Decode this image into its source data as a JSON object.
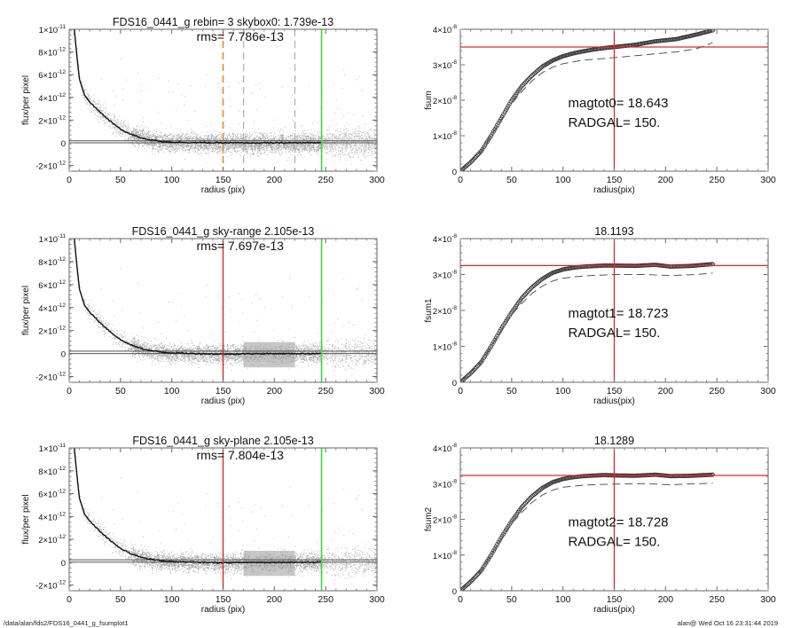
{
  "footer": {
    "path": "/data/alan/fds2/FDS16_0441_g_fsumplot1",
    "stamp": "alan@  Wed Oct 16 23:31:44 2019"
  },
  "colors": {
    "scatter_light": "#b8b8b8",
    "scatter_dark": "#9a9a9a",
    "profile": "#111111",
    "red": "#e0262a",
    "green": "#33dd33",
    "orange": "#f08a24",
    "gray_dash": "#b0b0b0",
    "dashed_curve": "#555555"
  },
  "chart_data": [
    {
      "id": "profile-0",
      "type": "scatter",
      "title": "FDS16_0441_g rebin= 3    skybox0:  1.739e-13",
      "annotation": "rms= 7.786e-13",
      "xlabel": "radius (pix)",
      "ylabel": "flux/per pixel",
      "xlim": [
        0,
        300
      ],
      "ylim": [
        -2.5e-12,
        1e-11
      ],
      "xticks": [
        0,
        50,
        100,
        150,
        200,
        250,
        300
      ],
      "xtick_labels": [
        "0",
        "50",
        "100",
        "150",
        "200",
        "250",
        "300"
      ],
      "yticks": [
        -2e-12,
        0,
        2e-12,
        4e-12,
        6e-12,
        8e-12,
        1e-11
      ],
      "ytick_labels": [
        [
          "-2×10",
          "-12"
        ],
        [
          "0",
          ""
        ],
        [
          "2×10",
          "-12"
        ],
        [
          "4×10",
          "-12"
        ],
        [
          "6×10",
          "-12"
        ],
        [
          "8×10",
          "-12"
        ],
        [
          "1×10",
          "-11"
        ]
      ],
      "hlines": [
        0,
        1.739e-13
      ],
      "vlines": [
        {
          "x": 150,
          "style": "orange-dashed"
        },
        {
          "x": 170,
          "style": "gray-dashed"
        },
        {
          "x": 220,
          "style": "gray-dashed"
        },
        {
          "x": 246,
          "style": "green"
        }
      ],
      "shaded_bands": [],
      "profile_points": [
        [
          5,
          1e-11
        ],
        [
          8,
          7.2e-12
        ],
        [
          10,
          5.6e-12
        ],
        [
          15,
          4.2e-12
        ],
        [
          20,
          3.6e-12
        ],
        [
          30,
          2.7e-12
        ],
        [
          40,
          1.9e-12
        ],
        [
          50,
          1.2e-12
        ],
        [
          60,
          7.5e-13
        ],
        [
          70,
          4.5e-13
        ],
        [
          80,
          2.5e-13
        ],
        [
          90,
          1.2e-13
        ],
        [
          100,
          6e-14
        ],
        [
          120,
          2e-14
        ],
        [
          150,
          0
        ],
        [
          180,
          -1e-14
        ],
        [
          200,
          -1e-14
        ],
        [
          246,
          1e-14
        ]
      ]
    },
    {
      "id": "growth-0",
      "type": "line",
      "title": "",
      "annotation_lines": [
        "magtot0=  18.643",
        "RADGAL=    150."
      ],
      "xlabel": "radius(pix)",
      "ylabel": "fsum",
      "xlim": [
        0,
        300
      ],
      "ylim": [
        0,
        4e-08
      ],
      "xticks": [
        0,
        50,
        100,
        150,
        200,
        250,
        300
      ],
      "xtick_labels": [
        "0",
        "50",
        "100",
        "150",
        "200",
        "250",
        "300"
      ],
      "yticks": [
        0,
        1e-08,
        2e-08,
        3e-08,
        4e-08
      ],
      "ytick_labels": [
        [
          "0",
          ""
        ],
        [
          "1×10",
          "-8"
        ],
        [
          "2×10",
          "-8"
        ],
        [
          "3×10",
          "-8"
        ],
        [
          "4×10",
          "-8"
        ]
      ],
      "red_vline": 150,
      "red_hline": 3.5e-08,
      "series": [
        {
          "name": "fsum",
          "style": "circles",
          "points": [
            [
              0,
              0
            ],
            [
              10,
              2.5e-09
            ],
            [
              20,
              5.5e-09
            ],
            [
              30,
              1e-08
            ],
            [
              40,
              1.5e-08
            ],
            [
              50,
              2e-08
            ],
            [
              60,
              2.4e-08
            ],
            [
              70,
              2.7e-08
            ],
            [
              80,
              2.95e-08
            ],
            [
              90,
              3.12e-08
            ],
            [
              100,
              3.24e-08
            ],
            [
              110,
              3.32e-08
            ],
            [
              120,
              3.38e-08
            ],
            [
              130,
              3.43e-08
            ],
            [
              140,
              3.47e-08
            ],
            [
              150,
              3.5e-08
            ],
            [
              170,
              3.56e-08
            ],
            [
              190,
              3.66e-08
            ],
            [
              210,
              3.72e-08
            ],
            [
              230,
              3.85e-08
            ],
            [
              246,
              3.97e-08
            ]
          ]
        },
        {
          "name": "dashed",
          "style": "dashed",
          "points": [
            [
              0,
              0
            ],
            [
              20,
              5.5e-09
            ],
            [
              40,
              1.45e-08
            ],
            [
              50,
              1.9e-08
            ],
            [
              60,
              2.25e-08
            ],
            [
              70,
              2.55e-08
            ],
            [
              80,
              2.78e-08
            ],
            [
              90,
              2.93e-08
            ],
            [
              100,
              3.03e-08
            ],
            [
              120,
              3.13e-08
            ],
            [
              150,
              3.2e-08
            ],
            [
              180,
              3.28e-08
            ],
            [
              210,
              3.36e-08
            ],
            [
              230,
              3.45e-08
            ],
            [
              246,
              3.62e-08
            ]
          ]
        }
      ]
    },
    {
      "id": "profile-1",
      "type": "scatter",
      "title": "FDS16_0441_g sky-range  2.105e-13",
      "annotation": "rms= 7.697e-13",
      "xlabel": "radius (pix)",
      "ylabel": "flux/per pixel",
      "xlim": [
        0,
        300
      ],
      "ylim": [
        -2.5e-12,
        1e-11
      ],
      "xticks": [
        0,
        50,
        100,
        150,
        200,
        250,
        300
      ],
      "xtick_labels": [
        "0",
        "50",
        "100",
        "150",
        "200",
        "250",
        "300"
      ],
      "yticks": [
        -2e-12,
        0,
        2e-12,
        4e-12,
        6e-12,
        8e-12,
        1e-11
      ],
      "ytick_labels": [
        [
          "-2×10",
          "-12"
        ],
        [
          "0",
          ""
        ],
        [
          "2×10",
          "-12"
        ],
        [
          "4×10",
          "-12"
        ],
        [
          "6×10",
          "-12"
        ],
        [
          "8×10",
          "-12"
        ],
        [
          "1×10",
          "-11"
        ]
      ],
      "hlines": [
        0,
        2.105e-13
      ],
      "vlines": [
        {
          "x": 150,
          "style": "red"
        },
        {
          "x": 246,
          "style": "green"
        }
      ],
      "shaded_bands": [
        [
          170,
          220
        ]
      ],
      "profile_points": [
        [
          5,
          1e-11
        ],
        [
          8,
          7.2e-12
        ],
        [
          10,
          5.6e-12
        ],
        [
          15,
          4.2e-12
        ],
        [
          20,
          3.6e-12
        ],
        [
          30,
          2.7e-12
        ],
        [
          40,
          1.9e-12
        ],
        [
          50,
          1.2e-12
        ],
        [
          60,
          7.5e-13
        ],
        [
          70,
          4.5e-13
        ],
        [
          80,
          2.5e-13
        ],
        [
          90,
          1.2e-13
        ],
        [
          100,
          6e-14
        ],
        [
          120,
          0
        ],
        [
          150,
          -5e-14
        ],
        [
          180,
          -1e-14
        ],
        [
          200,
          -1e-14
        ],
        [
          246,
          0
        ]
      ]
    },
    {
      "id": "growth-1",
      "type": "line",
      "title": "18.1193",
      "annotation_lines": [
        "magtot1=  18.723",
        "RADGAL=    150."
      ],
      "xlabel": "radius(pix)",
      "ylabel": "fsum1",
      "xlim": [
        0,
        300
      ],
      "ylim": [
        0,
        4e-08
      ],
      "xticks": [
        0,
        50,
        100,
        150,
        200,
        250,
        300
      ],
      "xtick_labels": [
        "0",
        "50",
        "100",
        "150",
        "200",
        "250",
        "300"
      ],
      "yticks": [
        0,
        1e-08,
        2e-08,
        3e-08,
        4e-08
      ],
      "ytick_labels": [
        [
          "0",
          ""
        ],
        [
          "1×10",
          "-8"
        ],
        [
          "2×10",
          "-8"
        ],
        [
          "3×10",
          "-8"
        ],
        [
          "4×10",
          "-8"
        ]
      ],
      "red_vline": 150,
      "red_hline": 3.25e-08,
      "series": [
        {
          "name": "fsum1",
          "style": "circles",
          "points": [
            [
              0,
              0
            ],
            [
              10,
              2.5e-09
            ],
            [
              20,
              5.5e-09
            ],
            [
              30,
              1e-08
            ],
            [
              40,
              1.5e-08
            ],
            [
              50,
              1.95e-08
            ],
            [
              60,
              2.35e-08
            ],
            [
              70,
              2.65e-08
            ],
            [
              80,
              2.88e-08
            ],
            [
              90,
              3.05e-08
            ],
            [
              100,
              3.14e-08
            ],
            [
              110,
              3.19e-08
            ],
            [
              120,
              3.22e-08
            ],
            [
              140,
              3.25e-08
            ],
            [
              150,
              3.25e-08
            ],
            [
              170,
              3.24e-08
            ],
            [
              190,
              3.27e-08
            ],
            [
              205,
              3.22e-08
            ],
            [
              225,
              3.24e-08
            ],
            [
              246,
              3.29e-08
            ]
          ]
        },
        {
          "name": "dashed",
          "style": "dashed",
          "points": [
            [
              0,
              0
            ],
            [
              20,
              5.5e-09
            ],
            [
              40,
              1.45e-08
            ],
            [
              50,
              1.88e-08
            ],
            [
              60,
              2.2e-08
            ],
            [
              70,
              2.48e-08
            ],
            [
              80,
              2.68e-08
            ],
            [
              90,
              2.82e-08
            ],
            [
              100,
              2.9e-08
            ],
            [
              120,
              2.96e-08
            ],
            [
              150,
              3e-08
            ],
            [
              180,
              3e-08
            ],
            [
              205,
              2.97e-08
            ],
            [
              230,
              3e-08
            ],
            [
              246,
              3.04e-08
            ]
          ]
        }
      ]
    },
    {
      "id": "profile-2",
      "type": "scatter",
      "title": "FDS16_0441_g sky-plane  2.105e-13",
      "annotation": "rms= 7.804e-13",
      "xlabel": "radius (pix)",
      "ylabel": "flux/per pixel",
      "xlim": [
        0,
        300
      ],
      "ylim": [
        -2.5e-12,
        1e-11
      ],
      "xticks": [
        0,
        50,
        100,
        150,
        200,
        250,
        300
      ],
      "xtick_labels": [
        "0",
        "50",
        "100",
        "150",
        "200",
        "250",
        "300"
      ],
      "yticks": [
        -2e-12,
        0,
        2e-12,
        4e-12,
        6e-12,
        8e-12,
        1e-11
      ],
      "ytick_labels": [
        [
          "-2×10",
          "-12"
        ],
        [
          "0",
          ""
        ],
        [
          "2×10",
          "-12"
        ],
        [
          "4×10",
          "-12"
        ],
        [
          "6×10",
          "-12"
        ],
        [
          "8×10",
          "-12"
        ],
        [
          "1×10",
          "-11"
        ]
      ],
      "hlines": [
        0,
        2.105e-13
      ],
      "vlines": [
        {
          "x": 150,
          "style": "red"
        },
        {
          "x": 246,
          "style": "green"
        }
      ],
      "shaded_bands": [
        [
          170,
          220
        ]
      ],
      "profile_points": [
        [
          5,
          1e-11
        ],
        [
          8,
          7.2e-12
        ],
        [
          10,
          5.6e-12
        ],
        [
          15,
          4.2e-12
        ],
        [
          20,
          3.6e-12
        ],
        [
          30,
          2.7e-12
        ],
        [
          40,
          1.9e-12
        ],
        [
          50,
          1.2e-12
        ],
        [
          60,
          7.5e-13
        ],
        [
          70,
          4.5e-13
        ],
        [
          80,
          2.5e-13
        ],
        [
          90,
          1.2e-13
        ],
        [
          100,
          6e-14
        ],
        [
          120,
          0
        ],
        [
          150,
          -5e-14
        ],
        [
          180,
          -1e-14
        ],
        [
          200,
          -1e-14
        ],
        [
          246,
          0
        ]
      ]
    },
    {
      "id": "growth-2",
      "type": "line",
      "title": "18.1289",
      "annotation_lines": [
        "magtot2=  18.728",
        "RADGAL=    150."
      ],
      "xlabel": "radius(pix)",
      "ylabel": "fsum2",
      "xlim": [
        0,
        300
      ],
      "ylim": [
        0,
        4e-08
      ],
      "xticks": [
        0,
        50,
        100,
        150,
        200,
        250,
        300
      ],
      "xtick_labels": [
        "0",
        "50",
        "100",
        "150",
        "200",
        "250",
        "300"
      ],
      "yticks": [
        0,
        1e-08,
        2e-08,
        3e-08,
        4e-08
      ],
      "ytick_labels": [
        [
          "0",
          ""
        ],
        [
          "1×10",
          "-8"
        ],
        [
          "2×10",
          "-8"
        ],
        [
          "3×10",
          "-8"
        ],
        [
          "4×10",
          "-8"
        ]
      ],
      "red_vline": 150,
      "red_hline": 3.23e-08,
      "series": [
        {
          "name": "fsum2",
          "style": "circles",
          "points": [
            [
              0,
              0
            ],
            [
              10,
              2.5e-09
            ],
            [
              20,
              5.5e-09
            ],
            [
              30,
              1e-08
            ],
            [
              40,
              1.5e-08
            ],
            [
              50,
              1.95e-08
            ],
            [
              60,
              2.35e-08
            ],
            [
              70,
              2.65e-08
            ],
            [
              80,
              2.88e-08
            ],
            [
              90,
              3.04e-08
            ],
            [
              100,
              3.13e-08
            ],
            [
              110,
              3.18e-08
            ],
            [
              120,
              3.21e-08
            ],
            [
              140,
              3.24e-08
            ],
            [
              150,
              3.23e-08
            ],
            [
              170,
              3.22e-08
            ],
            [
              190,
              3.25e-08
            ],
            [
              205,
              3.21e-08
            ],
            [
              225,
              3.22e-08
            ],
            [
              246,
              3.25e-08
            ]
          ]
        },
        {
          "name": "dashed",
          "style": "dashed",
          "points": [
            [
              0,
              0
            ],
            [
              20,
              5.5e-09
            ],
            [
              40,
              1.45e-08
            ],
            [
              50,
              1.88e-08
            ],
            [
              60,
              2.2e-08
            ],
            [
              70,
              2.48e-08
            ],
            [
              80,
              2.68e-08
            ],
            [
              90,
              2.82e-08
            ],
            [
              100,
              2.9e-08
            ],
            [
              120,
              2.96e-08
            ],
            [
              150,
              2.99e-08
            ],
            [
              180,
              3e-08
            ],
            [
              205,
              2.97e-08
            ],
            [
              230,
              3e-08
            ],
            [
              246,
              3.01e-08
            ]
          ]
        }
      ]
    }
  ]
}
